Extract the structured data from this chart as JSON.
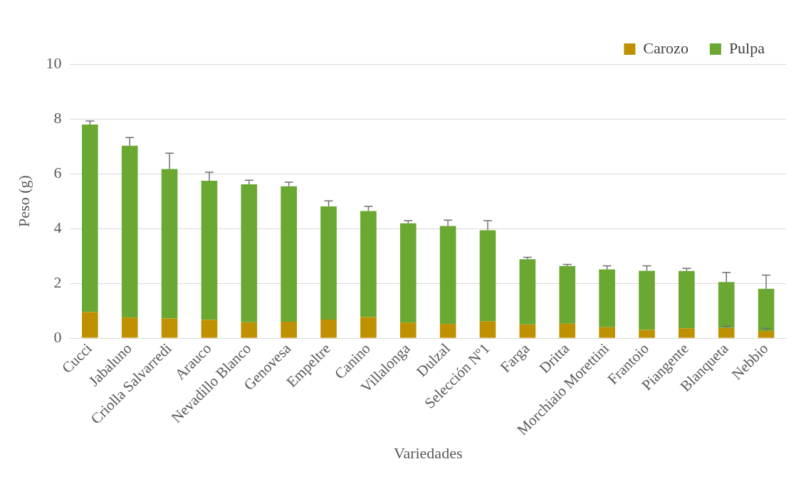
{
  "chart_data": {
    "type": "bar",
    "stacked": true,
    "xlabel": "Variedades",
    "ylabel": "Peso (g)",
    "categories": [
      "Cucci",
      "Jabaluno",
      "Criolla Salvarredi",
      "Arauco",
      "Nevadillo Blanco",
      "Genovesa",
      "Empeltre",
      "Canino",
      "Villalonga",
      "Dulzal",
      "Selección Nº1",
      "Farga",
      "Dritta",
      "Morchiaio Morettini",
      "Frantoio",
      "Piangente",
      "Blanqueta",
      "Nebbio"
    ],
    "series": [
      {
        "name": "Carozo",
        "color": "#bf9000",
        "values": [
          0.95,
          0.75,
          0.72,
          0.67,
          0.58,
          0.6,
          0.68,
          0.77,
          0.57,
          0.52,
          0.62,
          0.5,
          0.53,
          0.4,
          0.3,
          0.36,
          0.37,
          0.26
        ],
        "errors": [
          null,
          null,
          null,
          null,
          null,
          null,
          null,
          null,
          null,
          null,
          null,
          null,
          null,
          null,
          null,
          null,
          [
            0.37,
            0.43
          ],
          [
            0.26,
            0.36
          ]
        ]
      },
      {
        "name": "Pulpa",
        "color": "#6aa832",
        "values": [
          6.84,
          6.27,
          5.45,
          5.07,
          5.03,
          4.94,
          4.13,
          3.87,
          3.62,
          3.57,
          3.32,
          2.38,
          2.1,
          2.11,
          2.16,
          2.09,
          1.68,
          1.54
        ],
        "errors": [
          [
            7.79,
            7.92
          ],
          [
            7.02,
            7.32
          ],
          [
            6.17,
            6.75
          ],
          [
            5.74,
            6.05
          ],
          [
            5.61,
            5.76
          ],
          [
            5.54,
            5.69
          ],
          [
            4.81,
            5.01
          ],
          [
            4.64,
            4.81
          ],
          [
            4.19,
            4.29
          ],
          [
            4.09,
            4.31
          ],
          [
            3.94,
            4.29
          ],
          [
            2.88,
            2.95
          ],
          [
            2.63,
            2.69
          ],
          [
            2.51,
            2.64
          ],
          [
            2.46,
            2.64
          ],
          [
            2.45,
            2.55
          ],
          [
            2.05,
            2.4
          ],
          [
            1.8,
            2.3
          ]
        ]
      }
    ],
    "ylim": [
      0,
      10
    ],
    "yticks": [
      0,
      2,
      4,
      6,
      8,
      10
    ],
    "grid": "y",
    "legend": "top right"
  }
}
